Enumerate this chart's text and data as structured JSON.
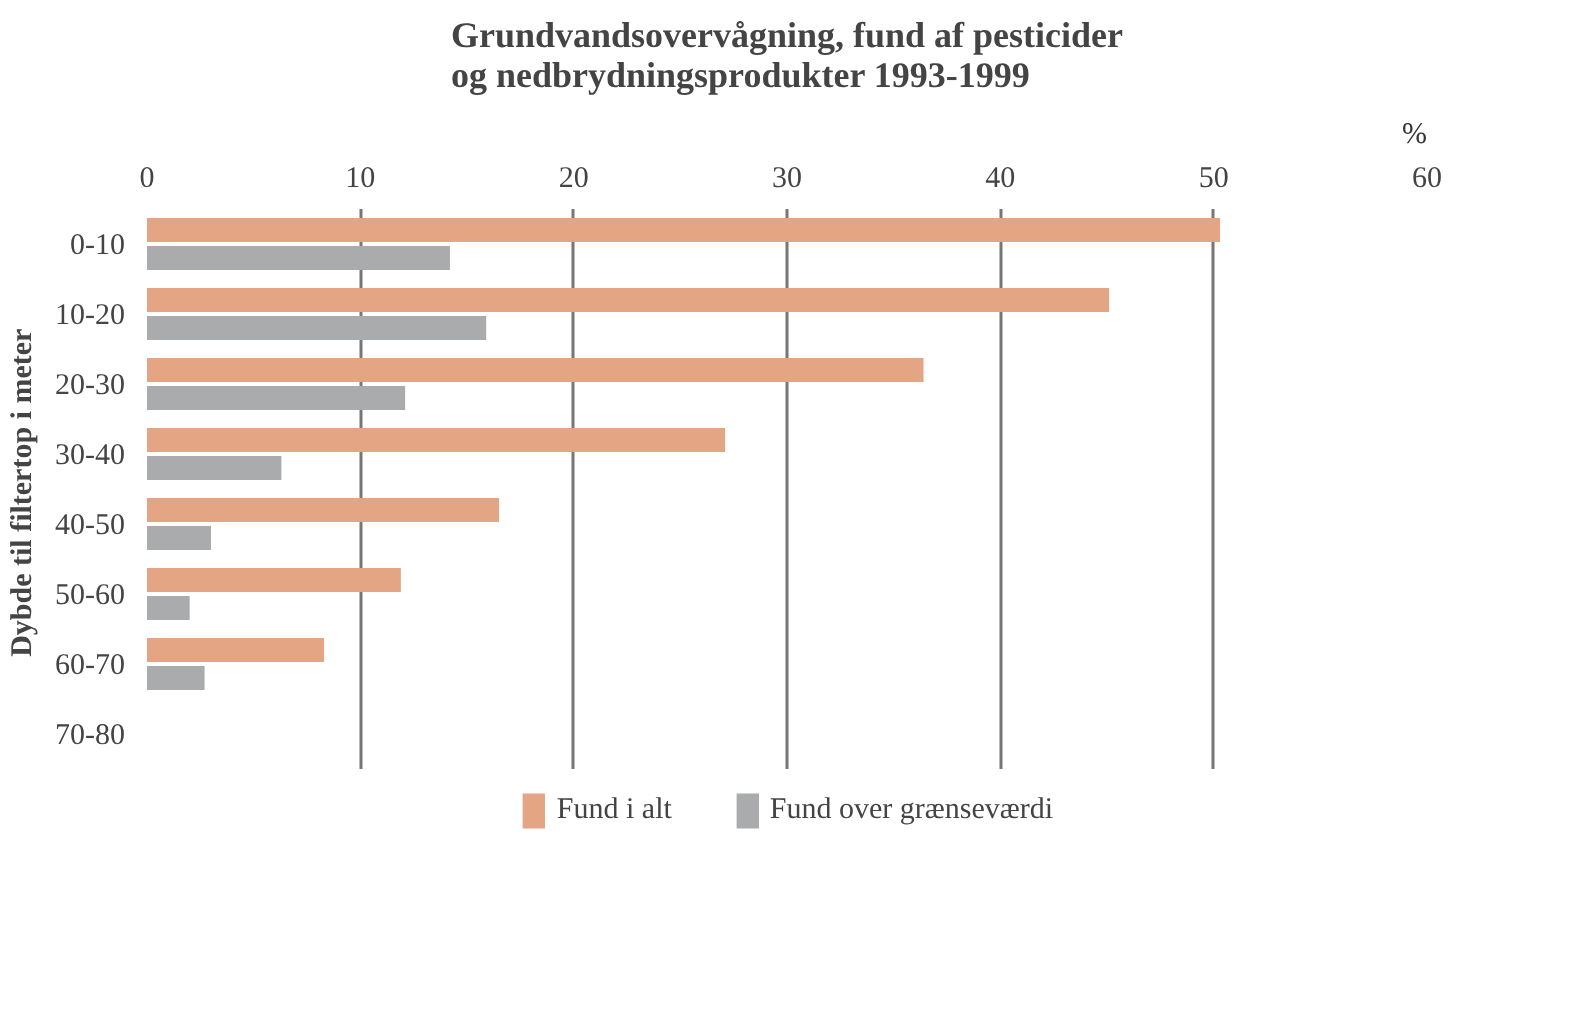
{
  "chart_data": {
    "type": "bar",
    "orientation": "horizontal",
    "title": "Grundvandsovervågning, fund af pesticider\nog nedbrydningsprodukter 1993-1999",
    "xlabel": "%",
    "ylabel": "Dybde  til filtertop i meter",
    "categories": [
      "0-10",
      "10-20",
      "20-30",
      "30-40",
      "40-50",
      "50-60",
      "60-70",
      "70-80"
    ],
    "series": [
      {
        "name": "Fund i alt",
        "color": "#e3a584",
        "values": [
          50.3,
          45.1,
          36.4,
          27.1,
          16.5,
          11.9,
          8.3,
          null
        ]
      },
      {
        "name": "Fund over grænseværdi",
        "color": "#a9abad",
        "values": [
          14.2,
          15.9,
          12.1,
          6.3,
          3.0,
          2.0,
          2.7,
          null
        ]
      }
    ],
    "xlim": [
      0,
      60
    ],
    "xticks": [
      0,
      10,
      20,
      30,
      40,
      50,
      60
    ],
    "grid": "x",
    "legend": "bottom"
  }
}
